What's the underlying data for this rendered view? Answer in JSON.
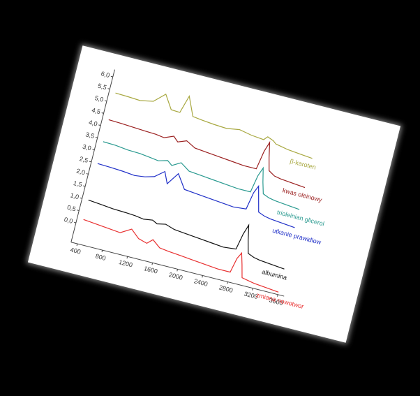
{
  "chart_data": {
    "type": "line",
    "x": [
      400,
      600,
      800,
      1000,
      1160,
      1300,
      1440,
      1520,
      1650,
      1800,
      2000,
      2200,
      2400,
      2600,
      2800,
      2850,
      2900,
      2950,
      3000,
      3100,
      3200,
      3400,
      3600
    ],
    "series": [
      {
        "name": "β-karoten",
        "color": "#a8a840",
        "values": [
          5.4,
          5.38,
          5.35,
          5.45,
          5.85,
          5.3,
          5.28,
          6.0,
          5.25,
          5.2,
          5.15,
          5.12,
          5.2,
          5.1,
          5.05,
          5.2,
          5.15,
          5.1,
          5.0,
          4.95,
          4.9,
          4.85,
          4.8
        ]
      },
      {
        "name": "kwas oleinowy",
        "color": "#9b2020",
        "values": [
          4.3,
          4.28,
          4.25,
          4.22,
          4.2,
          4.15,
          4.3,
          4.12,
          4.25,
          4.05,
          4.0,
          3.95,
          3.9,
          3.85,
          3.85,
          4.6,
          5.0,
          4.4,
          3.9,
          3.75,
          3.7,
          3.65,
          3.6
        ]
      },
      {
        "name": "trioleinian glicerol",
        "color": "#2a9a90",
        "values": [
          3.4,
          3.38,
          3.32,
          3.3,
          3.25,
          3.2,
          3.3,
          3.15,
          3.35,
          3.1,
          3.05,
          3.0,
          2.95,
          2.9,
          2.9,
          3.6,
          3.95,
          3.4,
          2.95,
          2.85,
          2.8,
          2.75,
          2.7
        ]
      },
      {
        "name": "utkanie prawidlow",
        "color": "#2030c8",
        "values": [
          2.5,
          2.48,
          2.45,
          2.4,
          2.45,
          2.55,
          2.85,
          2.4,
          2.9,
          2.35,
          2.3,
          2.25,
          2.2,
          2.15,
          2.2,
          2.9,
          3.2,
          2.7,
          2.2,
          2.1,
          2.05,
          2.0,
          1.95
        ]
      },
      {
        "name": "albumina",
        "color": "#111111",
        "values": [
          1.0,
          0.95,
          0.9,
          0.88,
          0.85,
          0.8,
          0.85,
          0.75,
          0.82,
          0.7,
          0.65,
          0.6,
          0.55,
          0.5,
          0.55,
          1.2,
          1.6,
          1.0,
          0.5,
          0.4,
          0.35,
          0.3,
          0.25
        ]
      },
      {
        "name": "zmiana nowotwor",
        "color": "#e83030",
        "values": [
          0.2,
          0.15,
          0.1,
          0.05,
          0.3,
          0.0,
          -0.1,
          0.1,
          -0.15,
          -0.2,
          -0.25,
          -0.3,
          -0.35,
          -0.4,
          -0.4,
          0.2,
          0.45,
          0.0,
          -0.5,
          -0.55,
          -0.6,
          -0.65,
          -0.7
        ]
      }
    ],
    "xlim": [
      300,
      3700
    ],
    "xticks": [
      400,
      800,
      1200,
      1600,
      2000,
      2400,
      2800,
      3200,
      3600
    ],
    "ylim": [
      -0.8,
      6.3
    ],
    "yticks": [
      {
        "value": 0,
        "label": "0,0"
      },
      {
        "value": 0.5,
        "label": "0,5"
      },
      {
        "value": 1,
        "label": "1,0"
      },
      {
        "value": 1.5,
        "label": "1,5"
      },
      {
        "value": 2,
        "label": "2,0"
      },
      {
        "value": 2.5,
        "label": "2,5"
      },
      {
        "value": 3,
        "label": "3,0"
      },
      {
        "value": 3.5,
        "label": "3,5"
      },
      {
        "value": 4,
        "label": "4,0"
      },
      {
        "value": 4.5,
        "label": "4,5"
      },
      {
        "value": 5,
        "label": "5,0"
      },
      {
        "value": 5.5,
        "label": "5,5"
      },
      {
        "value": 6,
        "label": "6,0"
      }
    ]
  }
}
